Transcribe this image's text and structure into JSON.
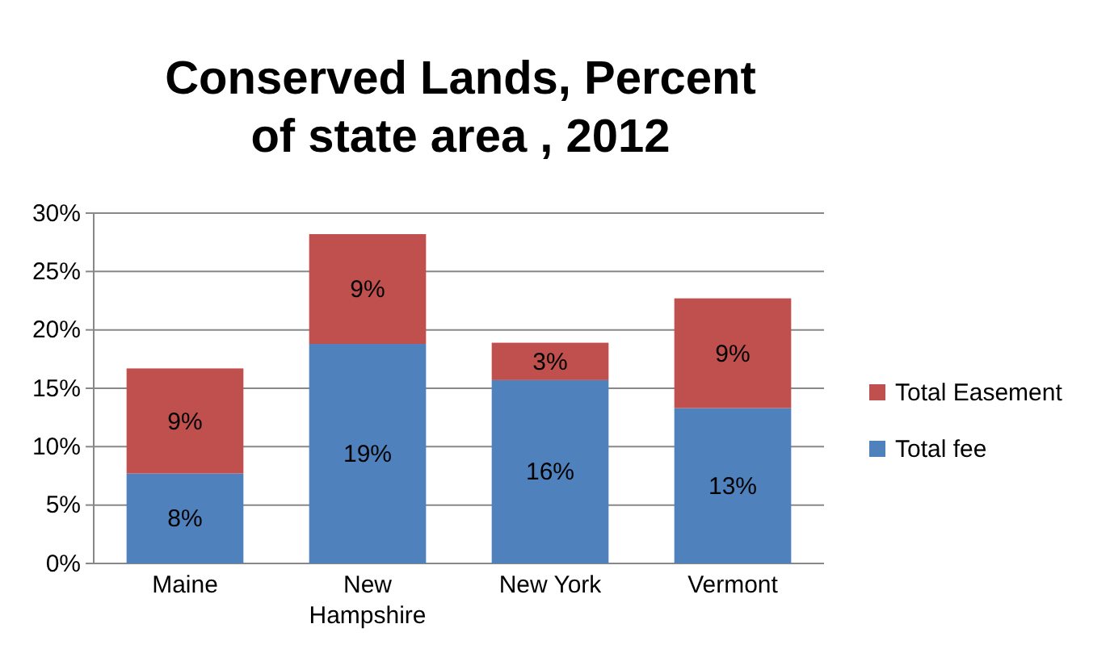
{
  "chart_data": {
    "type": "bar",
    "title": "Conserved Lands, Percent of state area , 2012",
    "categories": [
      "Maine",
      "New Hampshire",
      "New York",
      "Vermont"
    ],
    "stacked": true,
    "series": [
      {
        "name": "Total fee",
        "color": "#4f81bd",
        "values": [
          7.7,
          18.8,
          15.7,
          13.3
        ],
        "value_labels": [
          "8%",
          "19%",
          "16%",
          "13%"
        ]
      },
      {
        "name": "Total Easement",
        "color": "#c0504d",
        "values": [
          9.0,
          9.4,
          3.2,
          9.4
        ],
        "value_labels": [
          "9%",
          "9%",
          "3%",
          "9%"
        ]
      }
    ],
    "ylim": [
      0,
      30
    ],
    "yticks": [
      {
        "value": 0,
        "label": "0%"
      },
      {
        "value": 5,
        "label": "5%"
      },
      {
        "value": 10,
        "label": "10%"
      },
      {
        "value": 15,
        "label": "15%"
      },
      {
        "value": 20,
        "label": "20%"
      },
      {
        "value": 25,
        "label": "25%"
      },
      {
        "value": 30,
        "label": "30%"
      }
    ],
    "grid": "y",
    "legend": "right"
  }
}
